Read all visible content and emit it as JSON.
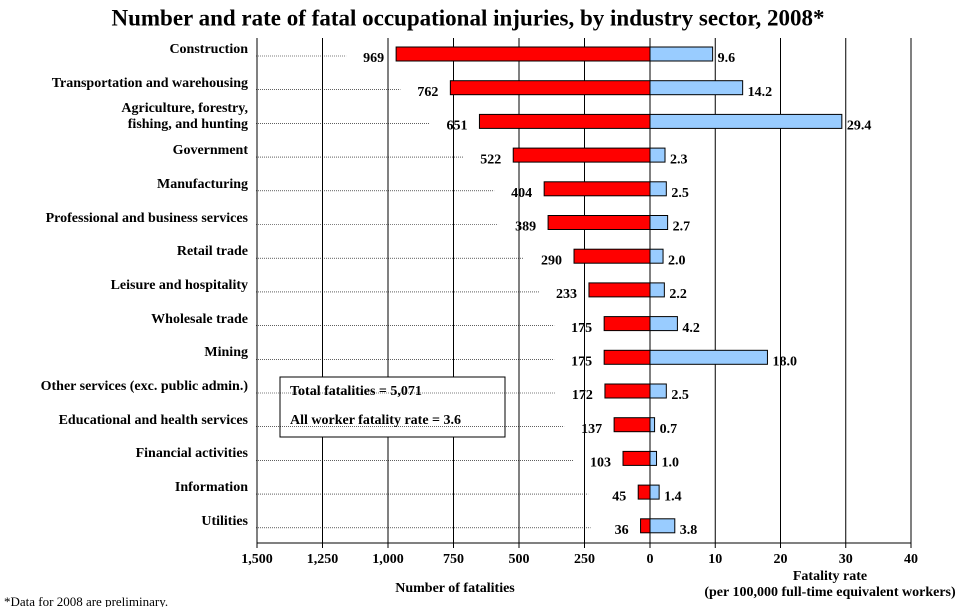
{
  "chart_data": [
    {
      "type": "bar",
      "orientation": "horizontal",
      "title": "Number and rate of fatal occupational injuries, by industry sector, 2008*",
      "categories": [
        "Construction",
        "Transportation and warehousing",
        "Agriculture, forestry,\nfishing, and hunting",
        "Government",
        "Manufacturing",
        "Professional and business services",
        "Retail trade",
        "Leisure and hospitality",
        "Wholesale trade",
        "Mining",
        "Other services (exc. public admin.)",
        "Educational and health services",
        "Financial activities",
        "Information",
        "Utilities"
      ],
      "values": [
        969,
        762,
        651,
        522,
        404,
        389,
        290,
        233,
        175,
        175,
        172,
        137,
        103,
        45,
        36
      ],
      "color": "#ff0000",
      "xlabel": "Number of fatalities",
      "xlim": [
        1500,
        0
      ],
      "xticks": [
        {
          "value": 1500,
          "label": "1,500"
        },
        {
          "value": 1250,
          "label": "1,250"
        },
        {
          "value": 1000,
          "label": "1,000"
        },
        750,
        500,
        250,
        0
      ],
      "grid": true,
      "annotations": [
        "Total fatalities = 5,071",
        "All worker fatality rate = 3.6"
      ],
      "footnote": "*Data for 2008 are preliminary."
    },
    {
      "type": "bar",
      "orientation": "horizontal",
      "values": [
        9.6,
        14.2,
        29.4,
        2.3,
        2.5,
        2.7,
        2.0,
        2.2,
        4.2,
        18.0,
        2.5,
        0.7,
        1.0,
        1.4,
        3.8
      ],
      "value_labels": [
        "9.6",
        "14.2",
        "29.4",
        "2.3",
        "2.5",
        "2.7",
        "2.0",
        "2.2",
        "4.2",
        "18.0",
        "2.5",
        "0.7",
        "1.0",
        "1.4",
        "3.8"
      ],
      "color": "#99ccff",
      "xlabel": "Fatality rate\n(per 100,000 full-time equivalent workers)",
      "xlim": [
        0,
        40
      ],
      "xticks": [
        10,
        20,
        30,
        40
      ],
      "grid": true
    }
  ]
}
